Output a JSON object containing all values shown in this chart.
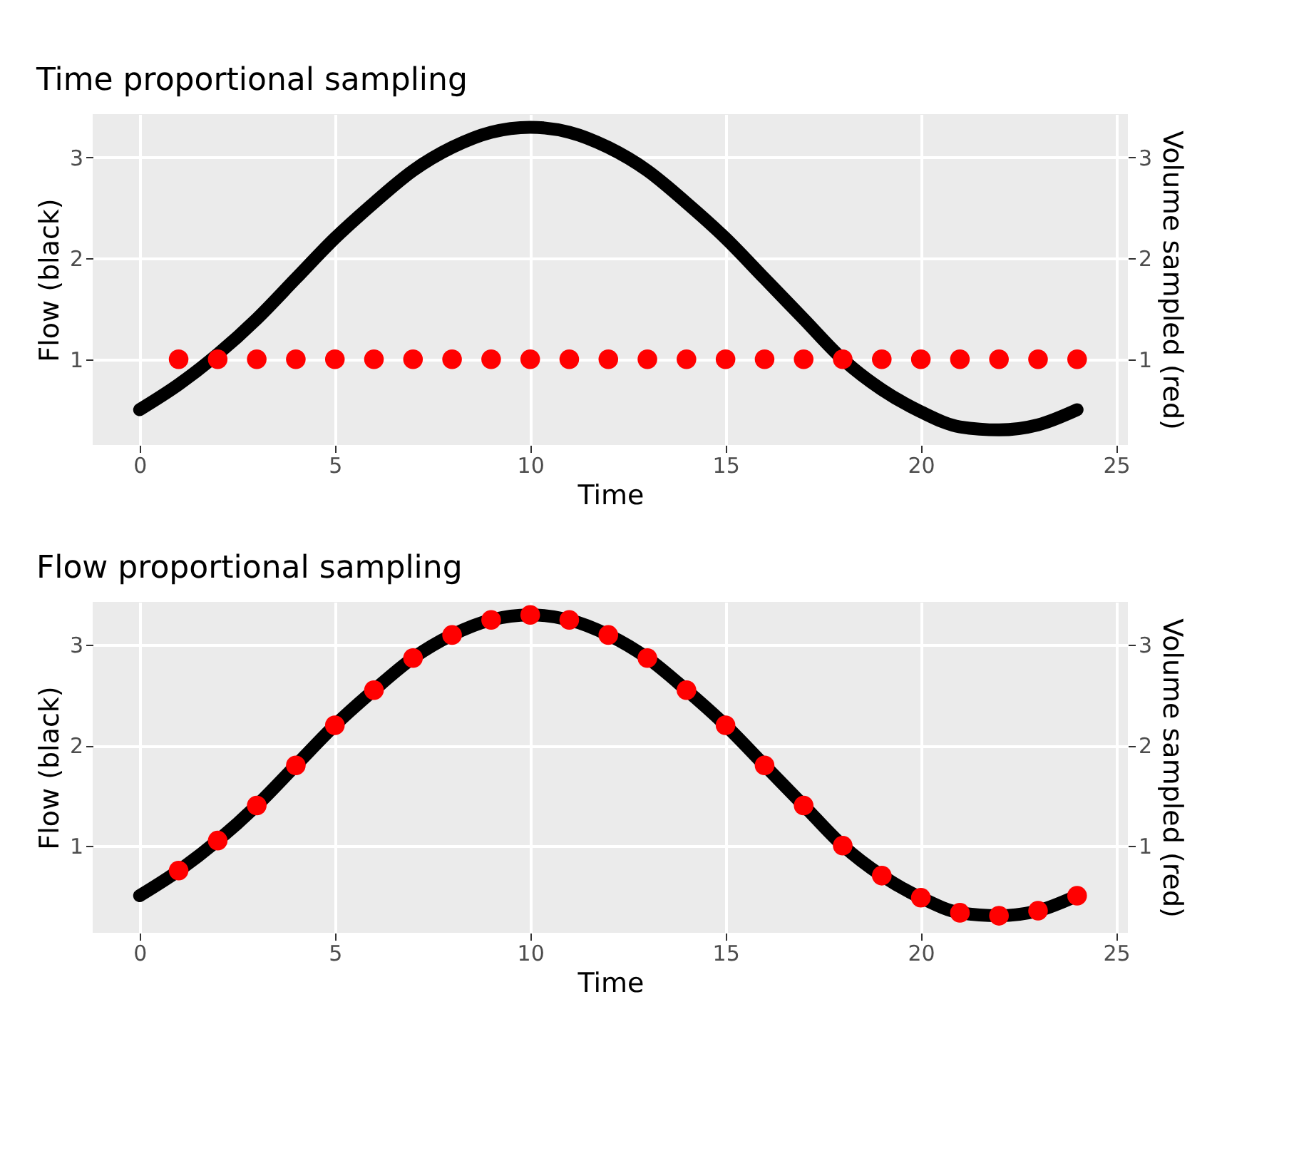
{
  "chart_data": [
    {
      "type": "line",
      "title": "Time proportional sampling",
      "xlabel": "Time",
      "ylabel": "Flow (black)",
      "y2label": "Volume sampled (red)",
      "x": [
        0,
        1,
        2,
        3,
        4,
        5,
        6,
        7,
        8,
        9,
        10,
        11,
        12,
        13,
        14,
        15,
        16,
        17,
        18,
        19,
        20,
        21,
        22,
        23,
        24
      ],
      "xlim": [
        -1.2,
        25.3
      ],
      "xticks": [
        0,
        5,
        10,
        15,
        20,
        25
      ],
      "ylim": [
        0.15,
        3.43
      ],
      "yticks": [
        1,
        2,
        3
      ],
      "y2lim": [
        0.15,
        3.43
      ],
      "y2ticks": [
        1,
        2,
        3
      ],
      "grid": true,
      "series": [
        {
          "color": "#000000",
          "values": [
            0.5,
            0.75,
            1.05,
            1.4,
            1.8,
            2.2,
            2.55,
            2.87,
            3.1,
            3.25,
            3.3,
            3.25,
            3.1,
            2.87,
            2.55,
            2.2,
            1.8,
            1.4,
            1.0,
            0.7,
            0.48,
            0.33,
            0.3,
            0.35,
            0.5
          ]
        },
        {
          "type": "scatter",
          "axis": "y2",
          "color": "#ff0000",
          "x": [
            1,
            2,
            3,
            4,
            5,
            6,
            7,
            8,
            9,
            10,
            11,
            12,
            13,
            14,
            15,
            16,
            17,
            18,
            19,
            20,
            21,
            22,
            23,
            24
          ],
          "values": [
            1,
            1,
            1,
            1,
            1,
            1,
            1,
            1,
            1,
            1,
            1,
            1,
            1,
            1,
            1,
            1,
            1,
            1,
            1,
            1,
            1,
            1,
            1,
            1
          ]
        }
      ]
    },
    {
      "type": "line",
      "title": "Flow proportional sampling",
      "xlabel": "Time",
      "ylabel": "Flow (black)",
      "y2label": "Volume sampled (red)",
      "x": [
        0,
        1,
        2,
        3,
        4,
        5,
        6,
        7,
        8,
        9,
        10,
        11,
        12,
        13,
        14,
        15,
        16,
        17,
        18,
        19,
        20,
        21,
        22,
        23,
        24
      ],
      "xlim": [
        -1.2,
        25.3
      ],
      "xticks": [
        0,
        5,
        10,
        15,
        20,
        25
      ],
      "ylim": [
        0.13,
        3.43
      ],
      "yticks": [
        1,
        2,
        3
      ],
      "y2lim": [
        0.13,
        3.43
      ],
      "y2ticks": [
        1,
        2,
        3
      ],
      "grid": true,
      "series": [
        {
          "color": "#000000",
          "values": [
            0.5,
            0.75,
            1.05,
            1.4,
            1.8,
            2.2,
            2.55,
            2.87,
            3.1,
            3.25,
            3.3,
            3.25,
            3.1,
            2.87,
            2.55,
            2.2,
            1.8,
            1.4,
            1.0,
            0.7,
            0.48,
            0.33,
            0.3,
            0.35,
            0.5
          ]
        },
        {
          "type": "scatter",
          "axis": "y2",
          "color": "#ff0000",
          "x": [
            1,
            2,
            3,
            4,
            5,
            6,
            7,
            8,
            9,
            10,
            11,
            12,
            13,
            14,
            15,
            16,
            17,
            18,
            19,
            20,
            21,
            22,
            23,
            24
          ],
          "values": [
            0.75,
            1.05,
            1.4,
            1.8,
            2.2,
            2.55,
            2.87,
            3.1,
            3.25,
            3.3,
            3.25,
            3.1,
            2.87,
            2.55,
            2.2,
            1.8,
            1.4,
            1.0,
            0.7,
            0.48,
            0.33,
            0.3,
            0.35,
            0.5
          ]
        }
      ]
    }
  ]
}
